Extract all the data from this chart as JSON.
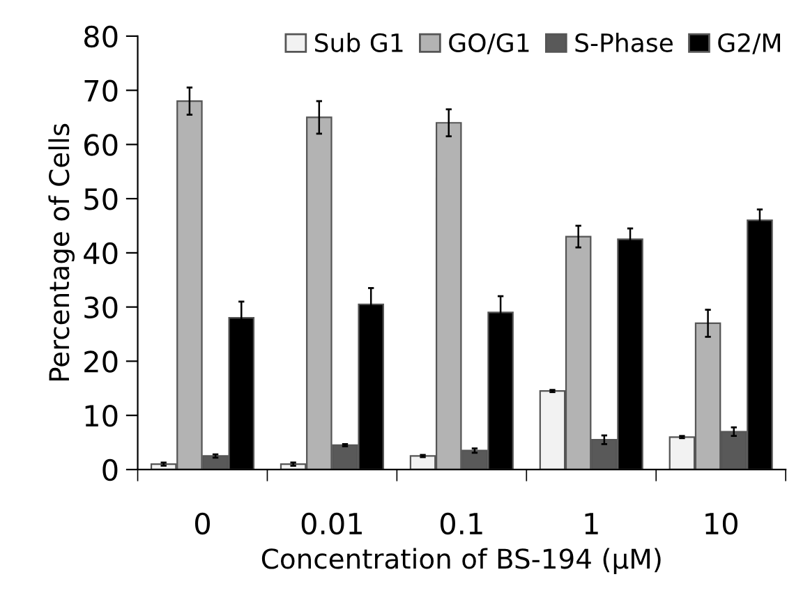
{
  "chart_data": {
    "type": "bar",
    "xlabel": "Concentration of BS-194 (µM)",
    "ylabel": "Percentage of Cells",
    "categories": [
      "0",
      "0.01",
      "0.1",
      "1",
      "10"
    ],
    "series": [
      {
        "name": "Sub G1",
        "color": "#f2f2f2",
        "values": [
          1,
          1,
          2.5,
          14.5,
          6
        ],
        "errors": [
          0.3,
          0.3,
          0.2,
          0.2,
          0.2
        ]
      },
      {
        "name": "GO/G1",
        "color": "#b3b3b3",
        "values": [
          68,
          65,
          64,
          43,
          27
        ],
        "errors": [
          2.5,
          3,
          2.5,
          2,
          2.5
        ]
      },
      {
        "name": "S-Phase",
        "color": "#595959",
        "values": [
          2.5,
          4.5,
          3.5,
          5.5,
          7
        ],
        "errors": [
          0.3,
          0.2,
          0.4,
          0.8,
          0.8
        ]
      },
      {
        "name": "G2/M",
        "color": "#000000",
        "values": [
          28,
          30.5,
          29,
          42.5,
          46
        ],
        "errors": [
          3,
          3,
          3,
          2,
          2
        ]
      }
    ],
    "ylim": [
      0,
      80
    ],
    "yticks": [
      0,
      10,
      20,
      30,
      40,
      50,
      60,
      70,
      80
    ],
    "grid": false,
    "legend": "top right"
  }
}
